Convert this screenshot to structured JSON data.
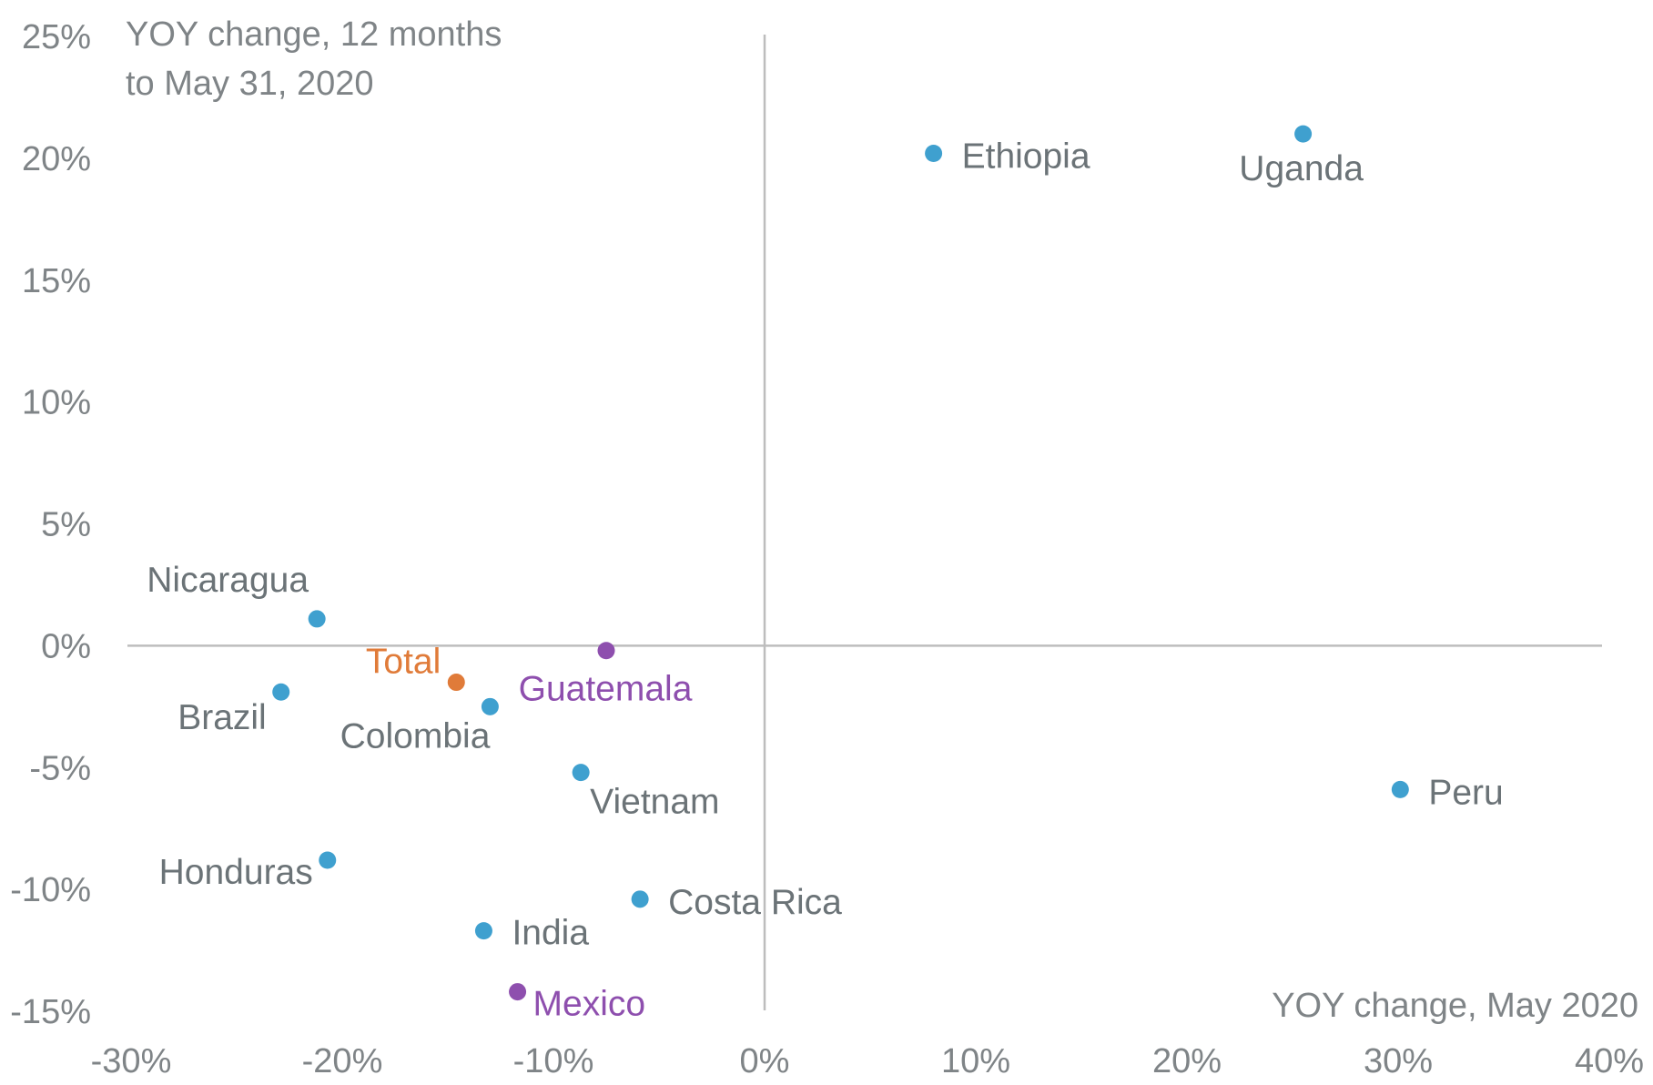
{
  "chart_data": {
    "type": "scatter",
    "title": "",
    "xlabel": "YOY change, May 2020",
    "ylabel_lines": [
      "YOY change, 12 months",
      "to May 31, 2020"
    ],
    "xlim": [
      -30,
      40
    ],
    "ylim": [
      -15,
      25
    ],
    "x_ticks": [
      -30,
      -20,
      -10,
      0,
      10,
      20,
      30,
      40
    ],
    "y_ticks": [
      -15,
      -10,
      -5,
      0,
      5,
      10,
      15,
      20,
      25
    ],
    "x_tick_labels": [
      "-30%",
      "-20%",
      "-10%",
      "0%",
      "10%",
      "20%",
      "30%",
      "40%"
    ],
    "y_tick_labels": [
      "-15%",
      "-10%",
      "-5%",
      "0%",
      "5%",
      "10%",
      "15%",
      "20%",
      "25%"
    ],
    "grid": false,
    "colors": {
      "country": "#3fa0cf",
      "highlight": "#8e4fae",
      "total": "#e07b39",
      "label_default": "#6b7377",
      "axis": "#bdbdbd"
    },
    "points": [
      {
        "label": "Ethiopia",
        "x": 8.0,
        "y": 20.2,
        "group": "country"
      },
      {
        "label": "Uganda",
        "x": 25.5,
        "y": 21.0,
        "group": "country"
      },
      {
        "label": "Nicaragua",
        "x": -21.2,
        "y": 1.1,
        "group": "country"
      },
      {
        "label": "Guatemala",
        "x": -7.5,
        "y": -0.2,
        "group": "highlight"
      },
      {
        "label": "Total",
        "x": -14.6,
        "y": -1.5,
        "group": "total"
      },
      {
        "label": "Brazil",
        "x": -22.9,
        "y": -1.9,
        "group": "country"
      },
      {
        "label": "Colombia",
        "x": -13.0,
        "y": -2.5,
        "group": "country"
      },
      {
        "label": "Vietnam",
        "x": -8.7,
        "y": -5.2,
        "group": "country"
      },
      {
        "label": "Peru",
        "x": 30.1,
        "y": -5.9,
        "group": "country"
      },
      {
        "label": "Honduras",
        "x": -20.7,
        "y": -8.8,
        "group": "country"
      },
      {
        "label": "Costa Rica",
        "x": -5.9,
        "y": -10.4,
        "group": "country"
      },
      {
        "label": "India",
        "x": -13.3,
        "y": -11.7,
        "group": "country"
      },
      {
        "label": "Mexico",
        "x": -11.7,
        "y": -14.2,
        "group": "highlight"
      }
    ]
  }
}
